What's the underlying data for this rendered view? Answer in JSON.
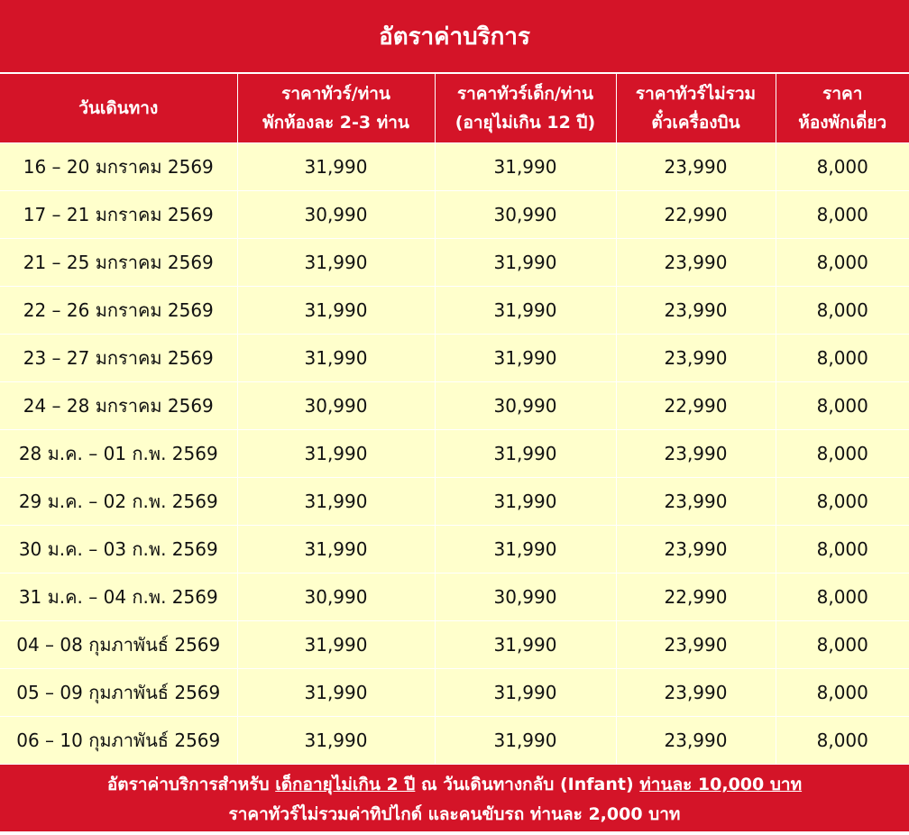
{
  "title": "อัตราค่าบริการ",
  "headers": [
    {
      "line1": "วันเดินทาง",
      "line2": ""
    },
    {
      "line1": "ราคาทัวร์/ท่าน",
      "line2": "พักห้องละ 2-3 ท่าน"
    },
    {
      "line1": "ราคาทัวร์เด็ก/ท่าน",
      "line2": "(อายุไม่เกิน 12 ปี)"
    },
    {
      "line1": "ราคาทัวร์ไม่รวม",
      "line2": "ตั๋วเครื่องบิน"
    },
    {
      "line1": "ราคา",
      "line2": "ห้องพักเดี่ยว"
    }
  ],
  "rows": [
    [
      "16 – 20 มกราคม 2569",
      "31,990",
      "31,990",
      "23,990",
      "8,000"
    ],
    [
      "17 – 21 มกราคม 2569",
      "30,990",
      "30,990",
      "22,990",
      "8,000"
    ],
    [
      "21 – 25 มกราคม 2569",
      "31,990",
      "31,990",
      "23,990",
      "8,000"
    ],
    [
      "22 – 26 มกราคม 2569",
      "31,990",
      "31,990",
      "23,990",
      "8,000"
    ],
    [
      "23 – 27 มกราคม 2569",
      "31,990",
      "31,990",
      "23,990",
      "8,000"
    ],
    [
      "24 – 28 มกราคม 2569",
      "30,990",
      "30,990",
      "22,990",
      "8,000"
    ],
    [
      "28 ม.ค. – 01 ก.พ. 2569",
      "31,990",
      "31,990",
      "23,990",
      "8,000"
    ],
    [
      "29 ม.ค. – 02 ก.พ. 2569",
      "31,990",
      "31,990",
      "23,990",
      "8,000"
    ],
    [
      "30 ม.ค. – 03 ก.พ. 2569",
      "31,990",
      "31,990",
      "23,990",
      "8,000"
    ],
    [
      "31 ม.ค. – 04 ก.พ. 2569",
      "30,990",
      "30,990",
      "22,990",
      "8,000"
    ],
    [
      "04 – 08 กุมภาพันธ์ 2569",
      "31,990",
      "31,990",
      "23,990",
      "8,000"
    ],
    [
      "05 – 09 กุมภาพันธ์ 2569",
      "31,990",
      "31,990",
      "23,990",
      "8,000"
    ],
    [
      "06 – 10 กุมภาพันธ์ 2569",
      "31,990",
      "31,990",
      "23,990",
      "8,000"
    ]
  ],
  "footer": {
    "l1a": "อัตราค่าบริการสำหรับ ",
    "l1b": "เด็กอายุไม่เกิน 2 ปี",
    "l1c": " ณ วันเดินทางกลับ (Infant) ",
    "l1d": "ท่านละ 10,000 บาท",
    "l2": "ราคาทัวร์ไม่รวมค่าทิปไกด์ และคนขับรถ ท่านละ 2,000 บาท"
  },
  "colors": {
    "header_red": "#d41428",
    "row_yellow": "#ffffcc"
  }
}
